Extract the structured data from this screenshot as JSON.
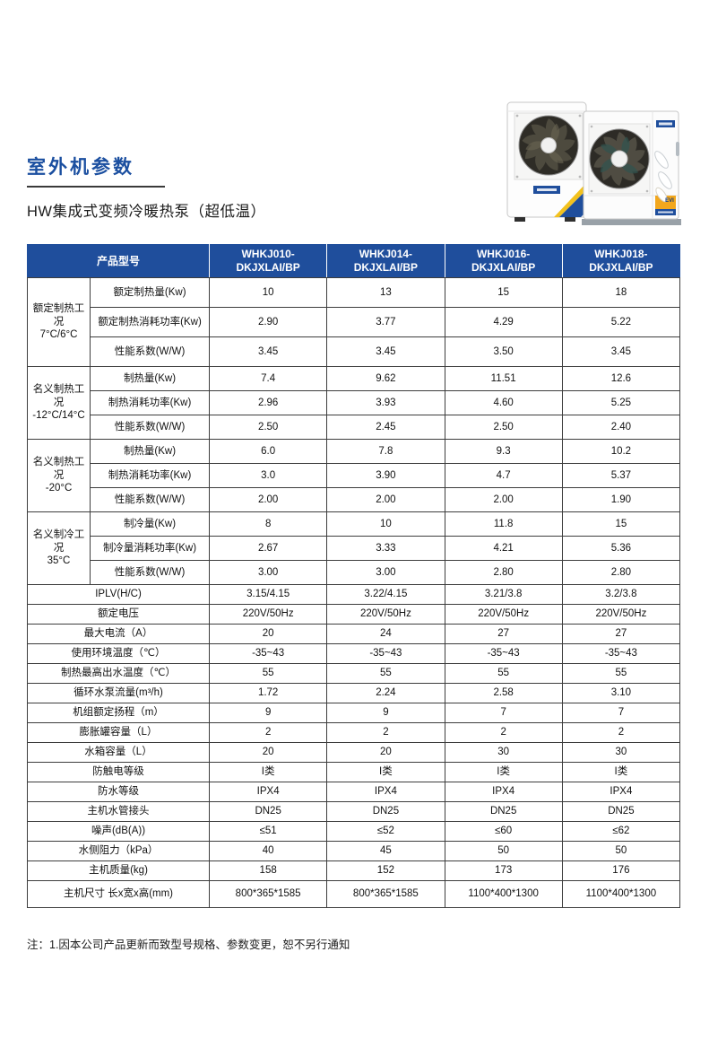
{
  "page": {
    "title": "室外机参数",
    "subtitle": "HW集成式变频冷暖热泵（超低温）",
    "note": "注：1.因本公司产品更新而致型号规格、参数变更，恕不另行通知"
  },
  "colors": {
    "accent_blue": "#1b4fa0",
    "table_header_bg": "#1f4e9c",
    "table_border": "#3d3d3d",
    "badge_yellow": "#f2a71d",
    "ribbon_yellow": "#f2c11e",
    "ribbon_blue": "#1f4e9c"
  },
  "images": {
    "left_unit": "vertical-outdoor-unit-photo",
    "right_unit": "horizontal-outdoor-unit-photo",
    "evi_label": "EVI"
  },
  "table": {
    "header": [
      "产品型号",
      "WHKJ010-DKJXLAI/BP",
      "WHKJ014-DKJXLAI/BP",
      "WHKJ016-DKJXLAI/BP",
      "WHKJ018-DKJXLAI/BP"
    ],
    "sections": [
      {
        "group": "额定制热工况\n7°C/6°C",
        "rows": [
          {
            "label": "额定制热量(Kw)",
            "values": [
              "10",
              "13",
              "15",
              "18"
            ]
          },
          {
            "label": "额定制热消耗功率(Kw)",
            "values": [
              "2.90",
              "3.77",
              "4.29",
              "5.22"
            ]
          },
          {
            "label": "性能系数(W/W)",
            "values": [
              "3.45",
              "3.45",
              "3.50",
              "3.45"
            ]
          }
        ]
      },
      {
        "group": "名义制热工况\n-12°C/14°C",
        "rows": [
          {
            "label": "制热量(Kw)",
            "values": [
              "7.4",
              "9.62",
              "11.51",
              "12.6"
            ]
          },
          {
            "label": "制热消耗功率(Kw)",
            "values": [
              "2.96",
              "3.93",
              "4.60",
              "5.25"
            ]
          },
          {
            "label": "性能系数(W/W)",
            "values": [
              "2.50",
              "2.45",
              "2.50",
              "2.40"
            ]
          }
        ]
      },
      {
        "group": "名义制热工况\n-20°C",
        "rows": [
          {
            "label": "制热量(Kw)",
            "values": [
              "6.0",
              "7.8",
              "9.3",
              "10.2"
            ]
          },
          {
            "label": "制热消耗功率(Kw)",
            "values": [
              "3.0",
              "3.90",
              "4.7",
              "5.37"
            ]
          },
          {
            "label": "性能系数(W/W)",
            "values": [
              "2.00",
              "2.00",
              "2.00",
              "1.90"
            ]
          }
        ]
      },
      {
        "group": "名义制冷工况\n35°C",
        "rows": [
          {
            "label": "制冷量(Kw)",
            "values": [
              "8",
              "10",
              "11.8",
              "15"
            ]
          },
          {
            "label": "制冷量消耗功率(Kw)",
            "values": [
              "2.67",
              "3.33",
              "4.21",
              "5.36"
            ]
          },
          {
            "label": "性能系数(W/W)",
            "values": [
              "3.00",
              "3.00",
              "2.80",
              "2.80"
            ]
          }
        ]
      },
      {
        "label": "IPLV(H/C)",
        "values": [
          "3.15/4.15",
          "3.22/4.15",
          "3.21/3.8",
          "3.2/3.8"
        ]
      },
      {
        "label": "额定电压",
        "values": [
          "220V/50Hz",
          "220V/50Hz",
          "220V/50Hz",
          "220V/50Hz"
        ]
      },
      {
        "label": "最大电流（A）",
        "values": [
          "20",
          "24",
          "27",
          "27"
        ]
      },
      {
        "label": "使用环境温度（℃）",
        "values": [
          "-35~43",
          "-35~43",
          "-35~43",
          "-35~43"
        ]
      },
      {
        "label": "制热最高出水温度（℃）",
        "values": [
          "55",
          "55",
          "55",
          "55"
        ]
      },
      {
        "label": "循环水泵流量(m³/h)",
        "values": [
          "1.72",
          "2.24",
          "2.58",
          "3.10"
        ]
      },
      {
        "label": "机组额定扬程（m）",
        "values": [
          "9",
          "9",
          "7",
          "7"
        ]
      },
      {
        "label": "膨胀罐容量（L）",
        "values": [
          "2",
          "2",
          "2",
          "2"
        ]
      },
      {
        "label": "水箱容量（L）",
        "values": [
          "20",
          "20",
          "30",
          "30"
        ]
      },
      {
        "label": "防触电等级",
        "values": [
          "I类",
          "I类",
          "I类",
          "I类"
        ]
      },
      {
        "label": "防水等级",
        "values": [
          "IPX4",
          "IPX4",
          "IPX4",
          "IPX4"
        ]
      },
      {
        "label": "主机水管接头",
        "values": [
          "DN25",
          "DN25",
          "DN25",
          "DN25"
        ]
      },
      {
        "label": "噪声(dB(A))",
        "values": [
          "≤51",
          "≤52",
          "≤60",
          "≤62"
        ]
      },
      {
        "label": "水侧阻力（kPa）",
        "values": [
          "40",
          "45",
          "50",
          "50"
        ]
      },
      {
        "label": "主机质量(kg)",
        "values": [
          "158",
          "152",
          "173",
          "176"
        ]
      },
      {
        "label": "主机尺寸 长x宽x高(mm)",
        "values": [
          "800*365*1585",
          "800*365*1585",
          "1100*400*1300",
          "1100*400*1300"
        ]
      }
    ]
  }
}
